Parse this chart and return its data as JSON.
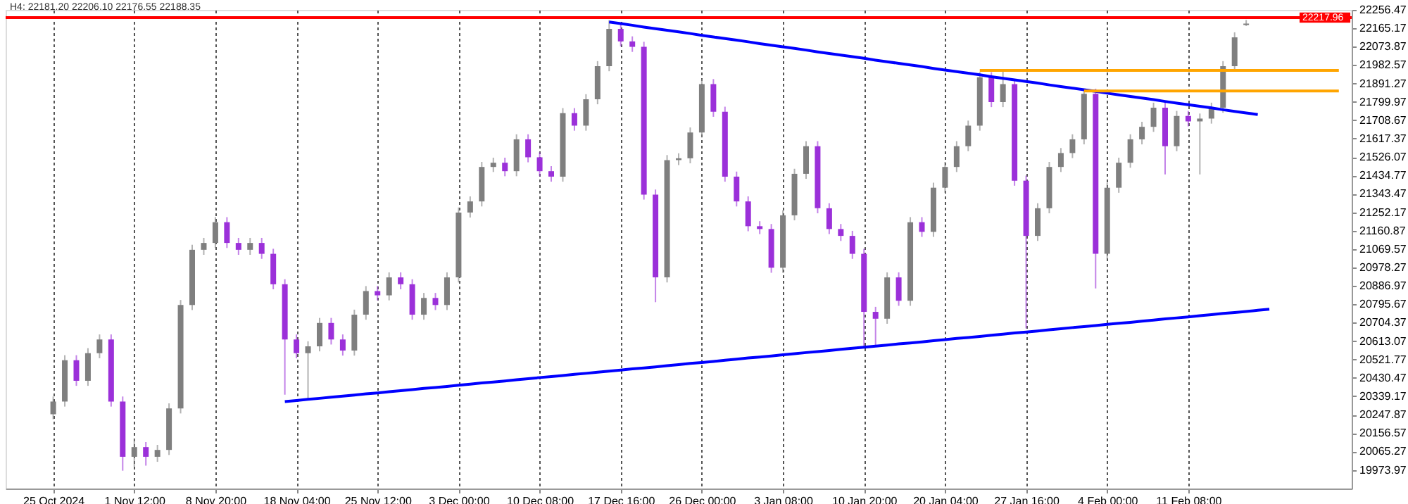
{
  "chart_data": {
    "type": "candlestick",
    "title": "H4:  22181.20 22206.10 22176.55 22188.35",
    "categories": [
      "25 Oct 2024",
      null,
      null,
      null,
      null,
      null,
      null,
      "1 Nov 12:00",
      null,
      null,
      null,
      null,
      null,
      null,
      "8 Nov 20:00",
      null,
      null,
      null,
      null,
      null,
      null,
      "18 Nov 04:00",
      null,
      null,
      null,
      null,
      null,
      null,
      "25 Nov 12:00",
      null,
      null,
      null,
      null,
      null,
      null,
      "3 Dec 00:00",
      null,
      null,
      null,
      null,
      null,
      null,
      "10 Dec 08:00",
      null,
      null,
      null,
      null,
      null,
      null,
      "17 Dec 16:00",
      null,
      null,
      null,
      null,
      null,
      null,
      "26 Dec 00:00",
      null,
      null,
      null,
      null,
      null,
      null,
      "3 Jan 08:00",
      null,
      null,
      null,
      null,
      null,
      null,
      "10 Jan 20:00",
      null,
      null,
      null,
      null,
      null,
      null,
      "20 Jan 04:00",
      null,
      null,
      null,
      null,
      null,
      null,
      "27 Jan 16:00",
      null,
      null,
      null,
      null,
      null,
      null,
      "4 Feb 00:00",
      null,
      null,
      null,
      null,
      null,
      null,
      "11 Feb 08:00",
      null,
      null,
      null,
      null,
      null,
      null,
      null,
      null,
      null,
      null,
      null,
      null,
      null
    ],
    "ohlc": [
      [
        20250,
        20338,
        20225,
        20313
      ],
      [
        20313,
        20543,
        20288,
        20518
      ],
      [
        20518,
        20543,
        20391,
        20416
      ],
      [
        20416,
        20578,
        20391,
        20553
      ],
      [
        20553,
        20646,
        20528,
        20621
      ],
      [
        20621,
        20646,
        20288,
        20313
      ],
      [
        20313,
        20338,
        19970,
        20039
      ],
      [
        20039,
        20130,
        19990,
        20087
      ],
      [
        20087,
        20112,
        19995,
        20039
      ],
      [
        20039,
        20098,
        20014,
        20073
      ],
      [
        20073,
        20304,
        20048,
        20279
      ],
      [
        20279,
        20817,
        20254,
        20792
      ],
      [
        20792,
        21091,
        20767,
        21066
      ],
      [
        21066,
        21125,
        21041,
        21100
      ],
      [
        21100,
        21228,
        21075,
        21203
      ],
      [
        21203,
        21228,
        21075,
        21100
      ],
      [
        21100,
        21125,
        21041,
        21066
      ],
      [
        21066,
        21125,
        21041,
        21100
      ],
      [
        21100,
        21125,
        21021,
        21046
      ],
      [
        21046,
        21071,
        20870,
        20895
      ],
      [
        20895,
        20920,
        20347,
        20621
      ],
      [
        20621,
        20646,
        20528,
        20553
      ],
      [
        20553,
        20612,
        20330,
        20587
      ],
      [
        20587,
        20728,
        20562,
        20703
      ],
      [
        20703,
        20728,
        20596,
        20621
      ],
      [
        20621,
        20646,
        20541,
        20566
      ],
      [
        20566,
        20769,
        20541,
        20744
      ],
      [
        20744,
        20886,
        20719,
        20861
      ],
      [
        20861,
        20886,
        20815,
        20840
      ],
      [
        20840,
        20954,
        20815,
        20929
      ],
      [
        20929,
        20954,
        20870,
        20895
      ],
      [
        20895,
        20920,
        20719,
        20744
      ],
      [
        20744,
        20852,
        20719,
        20827
      ],
      [
        20827,
        20852,
        20767,
        20792
      ],
      [
        20792,
        20954,
        20767,
        20929
      ],
      [
        20929,
        21276,
        20904,
        21251
      ],
      [
        21251,
        21331,
        21226,
        21306
      ],
      [
        21306,
        21502,
        21281,
        21477
      ],
      [
        21477,
        21523,
        21452,
        21498
      ],
      [
        21498,
        21523,
        21431,
        21456
      ],
      [
        21456,
        21639,
        21431,
        21614
      ],
      [
        21614,
        21639,
        21500,
        21525
      ],
      [
        21525,
        21550,
        21431,
        21456
      ],
      [
        21456,
        21481,
        21404,
        21429
      ],
      [
        21429,
        21769,
        21404,
        21744
      ],
      [
        21744,
        21769,
        21657,
        21682
      ],
      [
        21682,
        21838,
        21657,
        21813
      ],
      [
        21813,
        22002,
        21788,
        21977
      ],
      [
        21977,
        22205,
        21952,
        22162
      ],
      [
        22162,
        22187,
        22075,
        22100
      ],
      [
        22100,
        22125,
        22048,
        22073
      ],
      [
        22073,
        22098,
        21315,
        21340
      ],
      [
        21340,
        21365,
        20806,
        20929
      ],
      [
        20929,
        21536,
        20904,
        21511
      ],
      [
        21511,
        21545,
        21486,
        21520
      ],
      [
        21520,
        21673,
        21495,
        21648
      ],
      [
        21648,
        21913,
        21623,
        21888
      ],
      [
        21888,
        21913,
        21726,
        21751
      ],
      [
        21751,
        21776,
        21404,
        21429
      ],
      [
        21429,
        21454,
        21281,
        21306
      ],
      [
        21306,
        21331,
        21158,
        21183
      ],
      [
        21183,
        21208,
        21144,
        21169
      ],
      [
        21169,
        21194,
        20952,
        20977
      ],
      [
        20977,
        21262,
        20952,
        21237
      ],
      [
        21237,
        21468,
        21212,
        21443
      ],
      [
        21443,
        21605,
        21418,
        21580
      ],
      [
        21580,
        21605,
        21247,
        21272
      ],
      [
        21272,
        21297,
        21144,
        21169
      ],
      [
        21169,
        21194,
        21110,
        21135
      ],
      [
        21135,
        21160,
        21021,
        21046
      ],
      [
        21046,
        21071,
        20585,
        20758
      ],
      [
        20758,
        20783,
        20590,
        20724
      ],
      [
        20724,
        20954,
        20699,
        20929
      ],
      [
        20929,
        20954,
        20788,
        20813
      ],
      [
        20813,
        21228,
        20788,
        21203
      ],
      [
        21203,
        21228,
        21130,
        21155
      ],
      [
        21155,
        21399,
        21130,
        21374
      ],
      [
        21374,
        21502,
        21349,
        21477
      ],
      [
        21477,
        21605,
        21452,
        21580
      ],
      [
        21580,
        21707,
        21555,
        21682
      ],
      [
        21682,
        21947,
        21657,
        21922
      ],
      [
        21922,
        21947,
        21774,
        21799
      ],
      [
        21799,
        21950,
        21774,
        21888
      ],
      [
        21888,
        21913,
        21384,
        21409
      ],
      [
        21409,
        21434,
        20676,
        21135
      ],
      [
        21135,
        21297,
        21110,
        21272
      ],
      [
        21272,
        21502,
        21247,
        21477
      ],
      [
        21477,
        21571,
        21452,
        21546
      ],
      [
        21546,
        21639,
        21521,
        21614
      ],
      [
        21614,
        21865,
        21589,
        21840
      ],
      [
        21840,
        21865,
        20874,
        21046
      ],
      [
        21046,
        21399,
        21021,
        21374
      ],
      [
        21374,
        21523,
        21349,
        21498
      ],
      [
        21498,
        21639,
        21473,
        21614
      ],
      [
        21614,
        21701,
        21589,
        21676
      ],
      [
        21676,
        21796,
        21651,
        21771
      ],
      [
        21771,
        21796,
        21440,
        21580
      ],
      [
        21580,
        21755,
        21555,
        21730
      ],
      [
        21730,
        21755,
        21678,
        21703
      ],
      [
        21703,
        21742,
        21440,
        21717
      ],
      [
        21717,
        21796,
        21692,
        21771
      ],
      [
        21771,
        22002,
        21746,
        21977
      ],
      [
        21977,
        22145,
        21952,
        22120
      ],
      [
        22181.2,
        22206.1,
        22176.55,
        22188.35
      ],
      null,
      null,
      null,
      null,
      null,
      null,
      null,
      null
    ],
    "series": [
      {
        "type": "line",
        "color": "#0000ff",
        "values": [
          null,
          null,
          null,
          null,
          null,
          null,
          null,
          null,
          null,
          null,
          null,
          null,
          null,
          null,
          null,
          null,
          null,
          null,
          null,
          null,
          null,
          null,
          null,
          null,
          null,
          null,
          null,
          null,
          null,
          null,
          null,
          null,
          null,
          null,
          null,
          null,
          null,
          null,
          null,
          null,
          null,
          null,
          null,
          null,
          null,
          null,
          null,
          null,
          22196,
          22188,
          22180,
          22171,
          22163,
          22155,
          22147,
          22139,
          22130,
          22122,
          22114,
          22106,
          22098,
          22089,
          22081,
          22073,
          22065,
          22057,
          22048,
          22040,
          22032,
          22024,
          22016,
          22007,
          21999,
          21991,
          21983,
          21975,
          21966,
          21958,
          21950,
          21942,
          21934,
          21925,
          21917,
          21909,
          21901,
          21893,
          21884,
          21876,
          21868,
          21860,
          21852,
          21843,
          21835,
          21827,
          21819,
          21811,
          21802,
          21794,
          21786,
          21778,
          21770,
          21761,
          21753,
          21745,
          21737,
          null,
          null,
          null,
          null,
          null,
          null,
          null
        ]
      },
      {
        "type": "line",
        "color": "#0000ff",
        "values": [
          null,
          null,
          null,
          null,
          null,
          null,
          null,
          null,
          null,
          null,
          null,
          null,
          null,
          null,
          null,
          null,
          null,
          null,
          null,
          null,
          20313,
          20318,
          20324,
          20329,
          20335,
          20340,
          20345,
          20351,
          20356,
          20362,
          20367,
          20372,
          20378,
          20383,
          20388,
          20394,
          20399,
          20405,
          20410,
          20415,
          20421,
          20426,
          20432,
          20437,
          20442,
          20448,
          20453,
          20459,
          20464,
          20469,
          20475,
          20480,
          20485,
          20491,
          20496,
          20502,
          20507,
          20512,
          20518,
          20523,
          20529,
          20534,
          20539,
          20545,
          20550,
          20556,
          20561,
          20566,
          20572,
          20577,
          20583,
          20588,
          20593,
          20599,
          20604,
          20609,
          20615,
          20620,
          20626,
          20631,
          20636,
          20642,
          20647,
          20653,
          20658,
          20663,
          20669,
          20674,
          20680,
          20685,
          20690,
          20696,
          20701,
          20706,
          20712,
          20717,
          20723,
          20728,
          20733,
          20739,
          20744,
          20750,
          20755,
          20760,
          20766,
          20771,
          null,
          null,
          null,
          null,
          null,
          null
        ]
      },
      {
        "type": "line",
        "color": "#ffa500",
        "values": [
          null,
          null,
          null,
          null,
          null,
          null,
          null,
          null,
          null,
          null,
          null,
          null,
          null,
          null,
          null,
          null,
          null,
          null,
          null,
          null,
          null,
          null,
          null,
          null,
          null,
          null,
          null,
          null,
          null,
          null,
          null,
          null,
          null,
          null,
          null,
          null,
          null,
          null,
          null,
          null,
          null,
          null,
          null,
          null,
          null,
          null,
          null,
          null,
          null,
          null,
          null,
          null,
          null,
          null,
          null,
          null,
          null,
          null,
          null,
          null,
          null,
          null,
          null,
          null,
          null,
          null,
          null,
          null,
          null,
          null,
          null,
          null,
          null,
          null,
          null,
          null,
          null,
          null,
          null,
          null,
          21956,
          21956,
          21956,
          21956,
          21956,
          21956,
          21956,
          21956,
          21956,
          21956,
          21956,
          21956,
          21956,
          21956,
          21956,
          21956,
          21956,
          21956,
          21956,
          21956,
          21956,
          21956,
          21956,
          21956,
          21956,
          21956,
          21956,
          21956,
          21956,
          21956,
          21956,
          21956
        ]
      },
      {
        "type": "line",
        "color": "#ffa500",
        "values": [
          null,
          null,
          null,
          null,
          null,
          null,
          null,
          null,
          null,
          null,
          null,
          null,
          null,
          null,
          null,
          null,
          null,
          null,
          null,
          null,
          null,
          null,
          null,
          null,
          null,
          null,
          null,
          null,
          null,
          null,
          null,
          null,
          null,
          null,
          null,
          null,
          null,
          null,
          null,
          null,
          null,
          null,
          null,
          null,
          null,
          null,
          null,
          null,
          null,
          null,
          null,
          null,
          null,
          null,
          null,
          null,
          null,
          null,
          null,
          null,
          null,
          null,
          null,
          null,
          null,
          null,
          null,
          null,
          null,
          null,
          null,
          null,
          null,
          null,
          null,
          null,
          null,
          null,
          null,
          null,
          null,
          null,
          null,
          null,
          null,
          null,
          null,
          null,
          null,
          21854,
          21854,
          21854,
          21854,
          21854,
          21854,
          21854,
          21854,
          21854,
          21854,
          21854,
          21854,
          21854,
          21854,
          21854,
          21854,
          21854,
          21854,
          21854,
          21854,
          21854,
          21854,
          21854
        ]
      }
    ],
    "ref_lines": [
      {
        "axis": "y",
        "value": 22217.96,
        "label": "22217.96",
        "color": "#ff0000"
      }
    ],
    "ylim": [
      19881.5,
      22256.47
    ],
    "yticks": [
      19973.97,
      20065.27,
      20156.57,
      20247.87,
      20339.17,
      20430.47,
      20521.77,
      20613.07,
      20704.37,
      20795.67,
      20886.97,
      20978.27,
      21069.57,
      21160.87,
      21252.17,
      21343.47,
      21434.77,
      21526.07,
      21617.37,
      21708.67,
      21799.97,
      21891.27,
      21982.57,
      22073.87,
      22165.17,
      22256.47
    ],
    "grid": "x"
  }
}
